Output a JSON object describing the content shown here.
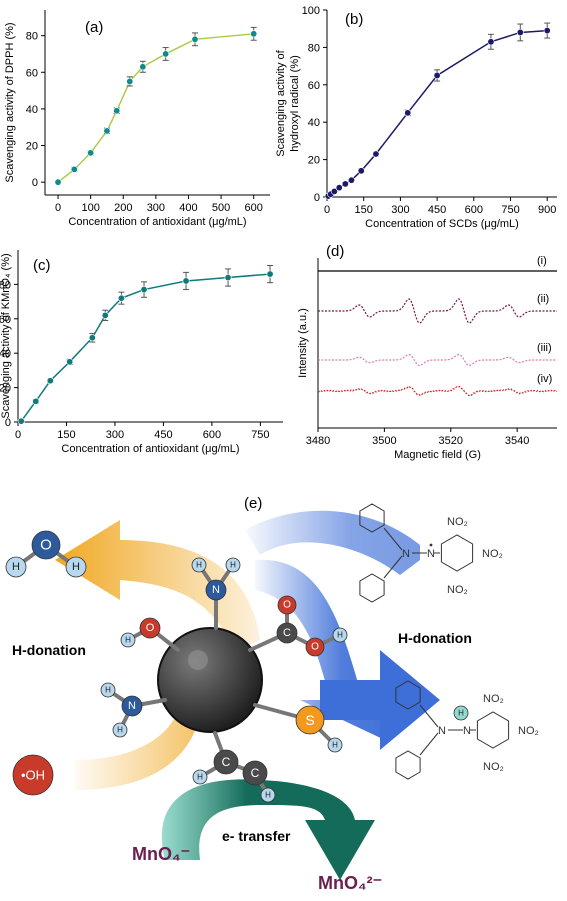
{
  "chart_data": [
    {
      "id": "a",
      "panel_label": "(a)",
      "type": "line",
      "xlabel": "Concentration of antioxidant (μg/mL)",
      "ylabel": "Scavenging activity of DPPH (%)",
      "xlim": [
        -40,
        650
      ],
      "ylim": [
        -7,
        94
      ],
      "xticks": [
        0,
        100,
        200,
        300,
        400,
        500,
        600
      ],
      "yticks": [
        0,
        20,
        40,
        60,
        80
      ],
      "line_color": "#a8cc4a",
      "marker_color": "#0f8a8c",
      "x": [
        0,
        50,
        100,
        150,
        180,
        220,
        260,
        330,
        420,
        600
      ],
      "y": [
        0,
        7,
        16,
        28,
        39,
        55,
        63,
        70,
        78,
        81
      ],
      "err": [
        0.8,
        1.2,
        1.2,
        1.5,
        1.5,
        2.5,
        3,
        3.5,
        3.5,
        3.5
      ]
    },
    {
      "id": "b",
      "panel_label": "(b)",
      "type": "line",
      "xlabel": "Concentration of SCDs (μg/mL)",
      "ylabel": "Scavenging activity of hydroxyl radical (%)",
      "xlim": [
        0,
        940
      ],
      "ylim": [
        0,
        100
      ],
      "xticks": [
        0,
        150,
        300,
        450,
        600,
        750,
        900
      ],
      "yticks": [
        0,
        20,
        40,
        60,
        80,
        100
      ],
      "line_color": "#1a1a66",
      "marker_color": "#1a1a66",
      "x": [
        5,
        15,
        30,
        50,
        75,
        100,
        140,
        200,
        330,
        450,
        670,
        790,
        900
      ],
      "y": [
        0.5,
        1.5,
        3,
        5,
        7,
        9,
        14,
        23,
        45,
        65,
        83,
        88,
        89
      ],
      "err": [
        0.3,
        0.3,
        0.5,
        0.5,
        0.5,
        0.5,
        1,
        1,
        1.5,
        3,
        4,
        4.5,
        4
      ]
    },
    {
      "id": "c",
      "panel_label": "(c)",
      "type": "line",
      "xlabel": "Concentration of antioxidant (μg/mL)",
      "ylabel": "Scavenging activity of KMnO₄ (%)",
      "xlim": [
        0,
        820
      ],
      "ylim": [
        0,
        100
      ],
      "xticks": [
        0,
        150,
        300,
        450,
        600,
        750
      ],
      "yticks": [
        0,
        20,
        40,
        60,
        80
      ],
      "line_color": "#0f7a7a",
      "marker_color": "#0f7a7a",
      "x": [
        10,
        55,
        100,
        160,
        230,
        270,
        320,
        390,
        520,
        650,
        780
      ],
      "y": [
        0.5,
        12,
        24,
        35,
        49,
        62,
        72,
        77,
        82,
        84,
        86
      ],
      "err": [
        0.3,
        1,
        1,
        1.5,
        2.5,
        3,
        3.5,
        4.5,
        5,
        5,
        5
      ]
    },
    {
      "id": "d",
      "panel_label": "(d)",
      "type": "line",
      "xlabel": "Magnetic field (G)",
      "ylabel": "Intensity (a.u.)",
      "xlim": [
        3480,
        3552
      ],
      "xticks": [
        3480,
        3500,
        3520,
        3540
      ],
      "series": [
        {
          "name": "(i)",
          "color": "#000000",
          "offset": 0,
          "amplitude": 0
        },
        {
          "name": "(ii)",
          "color": "#7a1548",
          "offset": -1,
          "amplitude": 1.0
        },
        {
          "name": "(iii)",
          "color": "#e07aa8",
          "offset": -2,
          "amplitude": 0.45
        },
        {
          "name": "(iv)",
          "color": "#cc2b2b",
          "offset": -3,
          "amplitude": 0.35
        }
      ],
      "peak_centers": [
        3494,
        3509,
        3524,
        3539
      ],
      "peak_relative_heights": [
        1,
        2,
        2,
        1
      ]
    }
  ],
  "diagram": {
    "panel_label": "(e)",
    "labels": {
      "h_donation_left": "H-donation",
      "h_donation_right": "H-donation",
      "e_transfer": "e- transfer",
      "hydroxyl": "•OH",
      "mno4": "MnO₄⁻",
      "mno4_2": "MnO₄²⁻",
      "no2": "NO₂"
    },
    "atoms": {
      "O": "O",
      "H": "H",
      "N": "N",
      "C": "C",
      "S": "S"
    },
    "colors": {
      "arrow_orange": "#f0a823",
      "arrow_blue": "#3e6fd8",
      "arrow_green": "#146b5a",
      "arrow_mint": "#8fd8c8",
      "core": "#3b3b3b",
      "oxygen": "#c83a2a",
      "nitrogen": "#2c5a9c",
      "hydrogen": "#b8d8ee",
      "carbon": "#4a4a4a",
      "sulfur": "#f29a1e",
      "mno4_text": "#6b2050"
    }
  }
}
